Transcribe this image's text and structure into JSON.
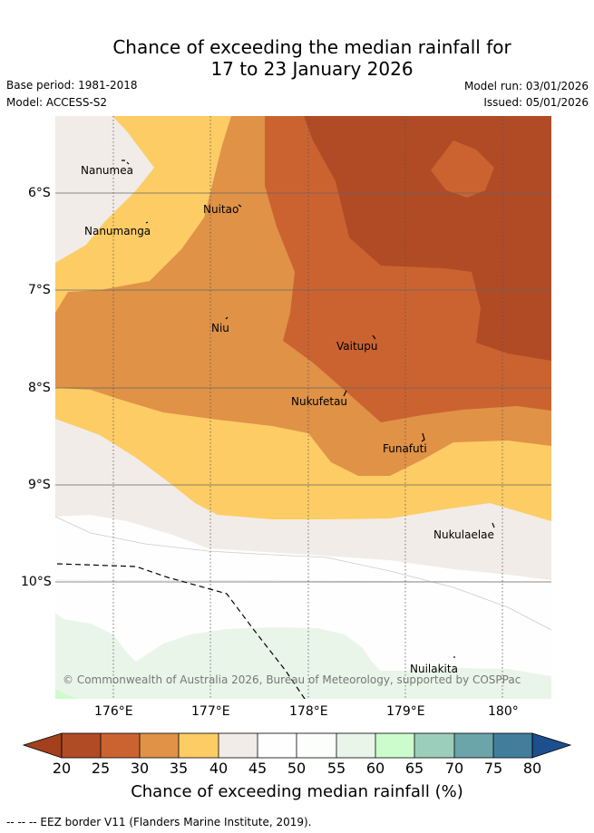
{
  "title": {
    "line1": "Chance of exceeding the median rainfall for",
    "line2": "17 to 23 January 2026"
  },
  "meta": {
    "base_period": "Base period: 1981-2018",
    "model": "Model: ACCESS-S2",
    "model_run": "Model run: 03/01/2026",
    "issued": "Issued: 05/01/2026"
  },
  "map": {
    "y_ticks": [
      "6°S",
      "7°S",
      "8°S",
      "9°S",
      "10°S"
    ],
    "x_ticks": [
      "176°E",
      "177°E",
      "178°E",
      "179°E",
      "180°"
    ],
    "places": [
      "Nanumea",
      "Nanumanga",
      "Nuitao",
      "Niu",
      "Vaitupu",
      "Nukufetau",
      "Funafuti",
      "Nukulaelae",
      "Nuilakita"
    ],
    "copyright": "© Commonwealth of Australia 2026, Bureau of Meteorology, supported by COSPPac"
  },
  "colorbar": {
    "labels": [
      "20",
      "25",
      "30",
      "35",
      "40",
      "45",
      "50",
      "55",
      "60",
      "65",
      "70",
      "75",
      "80"
    ],
    "title": "Chance of exceeding median rainfall (%)",
    "colors": {
      "below20": "#a3401d",
      "c20_25": "#b14b25",
      "c25_30": "#cb6331",
      "c30_35": "#e09247",
      "c35_40": "#fdcc65",
      "c40_45": "#f1ece7",
      "c45_50": "#fefefe",
      "c50_55": "#fcfefc",
      "c55_60": "#e9f5e9",
      "c60_65": "#ccfccc",
      "c65_70": "#9ccfbb",
      "c70_75": "#6ba4a9",
      "c75_80": "#427e9c",
      "above80": "#1c4f8c"
    }
  },
  "footnote": "--  --  -- EEZ border V11 (Flanders Marine Institute, 2019)."
}
